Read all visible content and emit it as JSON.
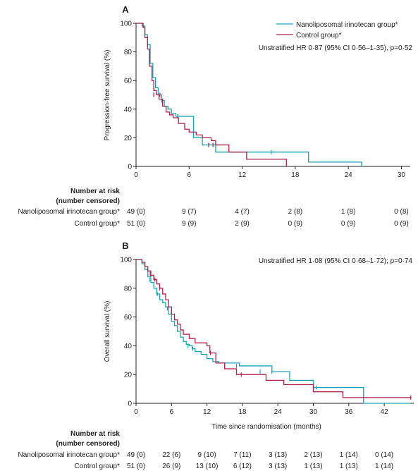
{
  "colors": {
    "nano": "#1aa3b8",
    "control": "#b0224b",
    "axis": "#231f20"
  },
  "chart_data": [
    {
      "type": "line",
      "panel": "A",
      "ylabel": "Progression-free survival (%)",
      "xlabel": "",
      "xlim": [
        0,
        31
      ],
      "ylim": [
        0,
        100
      ],
      "xticks": [
        0,
        6,
        12,
        18,
        24,
        30
      ],
      "yticks": [
        0,
        20,
        40,
        60,
        80,
        100
      ],
      "legend": [
        "Nanoliposomal irinotecan group*",
        "Control group*"
      ],
      "legend_position": "top-right",
      "annotation": "Unstratified HR 0·87 (95% CI 0·56–1·35), p=0·52",
      "series": [
        {
          "name": "Nanoliposomal irinotecan group*",
          "color_key": "nano",
          "x": [
            0,
            0.7,
            1.0,
            1.3,
            1.6,
            1.9,
            2.2,
            2.5,
            2.9,
            3.2,
            3.6,
            4.0,
            4.5,
            5.0,
            5.5,
            6.0,
            6.5,
            7.0,
            7.5,
            8.0,
            9.0,
            10.5,
            12.0,
            13.5,
            15.5,
            16.5,
            18.0,
            19.5,
            21.0,
            25.5
          ],
          "y": [
            100,
            98,
            92,
            85,
            72,
            62,
            55,
            50,
            46,
            42,
            40,
            37,
            35,
            35,
            35,
            35,
            20,
            20,
            15,
            15,
            10,
            10,
            10,
            10,
            10,
            10,
            10,
            3,
            3,
            0
          ],
          "censor": [
            [
              2.9,
              46
            ],
            [
              4.7,
              35
            ],
            [
              15.3,
              10
            ]
          ]
        },
        {
          "name": "Control group*",
          "color_key": "control",
          "x": [
            0,
            0.8,
            1.0,
            1.3,
            1.5,
            1.8,
            2.0,
            2.3,
            2.6,
            3.0,
            3.4,
            3.8,
            4.2,
            4.8,
            5.5,
            6.0,
            6.8,
            7.5,
            8.5,
            9.0,
            10.5,
            11.5,
            12.5,
            15.0,
            17.0
          ],
          "y": [
            100,
            97,
            90,
            82,
            70,
            60,
            53,
            50,
            47,
            42,
            38,
            36,
            34,
            30,
            26,
            24,
            22,
            20,
            18,
            15,
            10,
            10,
            5,
            5,
            0
          ],
          "censor": [
            [
              2.0,
              50
            ],
            [
              2.7,
              50
            ],
            [
              8.2,
              15
            ],
            [
              8.7,
              15
            ]
          ]
        }
      ]
    },
    {
      "type": "line",
      "panel": "B",
      "ylabel": "Overall survival (%)",
      "xlabel": "Time since randomisation (months)",
      "xlim": [
        0,
        47
      ],
      "ylim": [
        0,
        100
      ],
      "xticks": [
        0,
        6,
        12,
        18,
        24,
        30,
        36,
        42
      ],
      "yticks": [
        0,
        20,
        40,
        60,
        80,
        100
      ],
      "annotation": "Unstratified HR 1·08 (95% CI 0·68–1·72); p=0·74",
      "series": [
        {
          "name": "Nanoliposomal irinotecan group*",
          "color_key": "nano",
          "x": [
            0,
            1.0,
            1.5,
            2.0,
            2.5,
            3.0,
            3.5,
            4.0,
            4.5,
            5.0,
            5.5,
            6.0,
            6.5,
            7.0,
            7.5,
            8.0,
            8.5,
            9.0,
            9.5,
            10.0,
            11.0,
            12.0,
            13.0,
            14.0,
            16.0,
            17.5,
            20.0,
            23.0,
            26.0,
            30.0,
            33.0,
            38.5,
            46.5
          ],
          "y": [
            100,
            97,
            93,
            88,
            84,
            80,
            76,
            72,
            70,
            67,
            62,
            57,
            54,
            50,
            46,
            43,
            41,
            40,
            38,
            36,
            34,
            31,
            29,
            28,
            28,
            26,
            26,
            22,
            16,
            11,
            11,
            0,
            0
          ],
          "censor": [
            [
              2.3,
              86
            ],
            [
              3.6,
              76
            ],
            [
              5.3,
              66
            ],
            [
              8.8,
              40
            ],
            [
              9.6,
              38
            ],
            [
              17.0,
              26
            ],
            [
              21.0,
              22
            ],
            [
              23.0,
              22
            ],
            [
              30.5,
              11
            ]
          ]
        },
        {
          "name": "Control group*",
          "color_key": "control",
          "x": [
            0,
            1.0,
            1.5,
            2.0,
            2.5,
            3.0,
            3.5,
            4.0,
            4.5,
            5.0,
            5.5,
            6.0,
            6.5,
            7.0,
            7.5,
            8.0,
            9.0,
            10.0,
            11.0,
            12.0,
            12.5,
            13.5,
            15.0,
            17.0,
            19.0,
            22.0,
            25.0,
            28.0,
            30.0,
            32.0,
            35.0,
            38.0,
            42.0,
            46.5
          ],
          "y": [
            100,
            98,
            95,
            92,
            89,
            86,
            83,
            80,
            76,
            72,
            67,
            62,
            58,
            55,
            51,
            48,
            45,
            42,
            42,
            40,
            35,
            28,
            24,
            20,
            20,
            16,
            13,
            13,
            8,
            8,
            4,
            4,
            4,
            4
          ],
          "censor": [
            [
              2.4,
              90
            ],
            [
              3.2,
              86
            ],
            [
              4.0,
              80
            ],
            [
              12.6,
              35
            ],
            [
              17.8,
              20
            ],
            [
              46.5,
              4
            ]
          ]
        }
      ]
    }
  ],
  "risk_tables": [
    {
      "panel": "A",
      "head1": "Number at risk",
      "head2": "(number censored)",
      "rows": [
        {
          "label": "Nanoliposomal irinotecan group*",
          "values": [
            "49 (0)",
            "9 (7)",
            "4 (7)",
            "2 (8)",
            "1 (8)",
            "0 (8)"
          ]
        },
        {
          "label": "Control group*",
          "values": [
            "51 (0)",
            "9 (9)",
            "2 (9)",
            "0 (9)",
            "0 (9)",
            "0 (9)"
          ]
        }
      ]
    },
    {
      "panel": "B",
      "head1": "Number at risk",
      "head2": "(number censored)",
      "rows": [
        {
          "label": "Nanoliposomal irinotecan group*",
          "values": [
            "49 (0)",
            "22 (6)",
            "9 (10)",
            "7 (11)",
            "3 (13)",
            "2 (13)",
            "1 (14)",
            "0 (14)"
          ]
        },
        {
          "label": "Control group*",
          "values": [
            "51 (0)",
            "26 (9)",
            "13 (10)",
            "6 (12)",
            "3 (13)",
            "1 (13)",
            "1 (13)",
            "1 (14)"
          ]
        }
      ]
    }
  ]
}
